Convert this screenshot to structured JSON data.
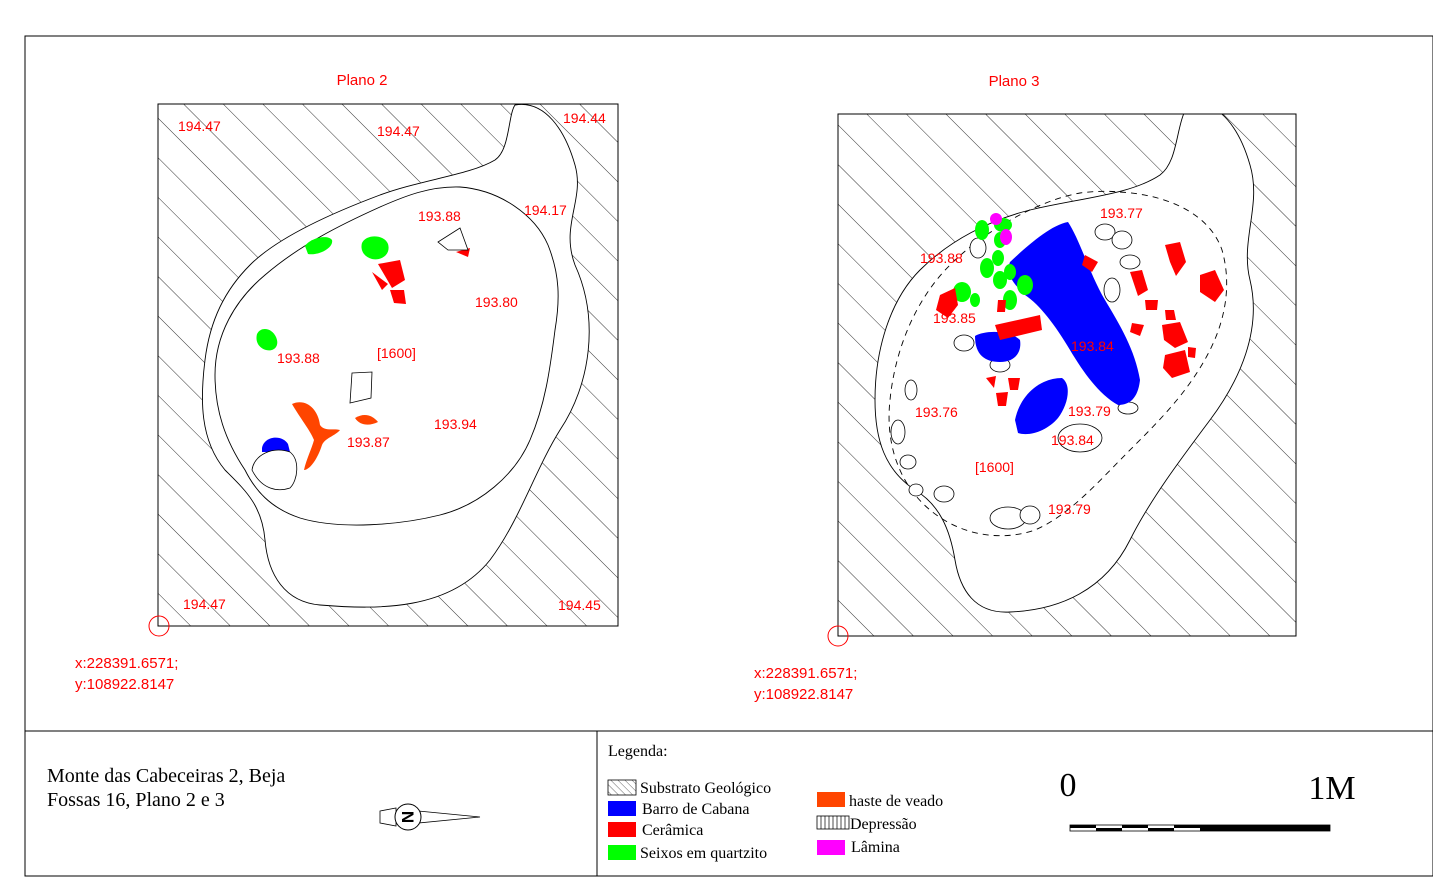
{
  "colors": {
    "label": "#ff0000",
    "barro": "#0000ff",
    "ceramica": "#ff0000",
    "seixos": "#00ff00",
    "haste": "#ff4500",
    "lamina": "#ff00ff",
    "line": "#000000"
  },
  "plano2": {
    "title": "Plano 2",
    "elevations": [
      "194.47",
      "194.47",
      "194.44",
      "193.88",
      "194.17",
      "193.80",
      "193.88",
      "[1600]",
      "193.94",
      "193.87",
      "194.47",
      "194.45"
    ],
    "coords": [
      "x:228391.6571;",
      "y:108922.8147"
    ]
  },
  "plano3": {
    "title": "Plano 3",
    "elevations": [
      "193.77",
      "193.88",
      "193.85",
      "193.84",
      "193.76",
      "193.79",
      "193.84",
      "[1600]",
      "193.79"
    ],
    "coords": [
      "x:228391.6571;",
      "y:108922.8147"
    ]
  },
  "footer": {
    "title_line1": "Monte das Cabeceiras 2, Beja",
    "title_line2": "Fossas 16, Plano 2 e 3",
    "north_letter": "N",
    "legend_title": "Legenda:",
    "legend": [
      {
        "label": "Substrato Geológico",
        "swatch": "hatch"
      },
      {
        "label": "Barro de Cabana",
        "swatch": "barro"
      },
      {
        "label": "Cerâmica",
        "swatch": "ceramica"
      },
      {
        "label": "Seixos em quartzito",
        "swatch": "seixos"
      },
      {
        "label": "haste de veado",
        "swatch": "haste"
      },
      {
        "label": "Depressão",
        "swatch": "depressao"
      },
      {
        "label": "Lâmina",
        "swatch": "lamina"
      }
    ],
    "scale": {
      "start": "0",
      "end": "1M"
    }
  }
}
